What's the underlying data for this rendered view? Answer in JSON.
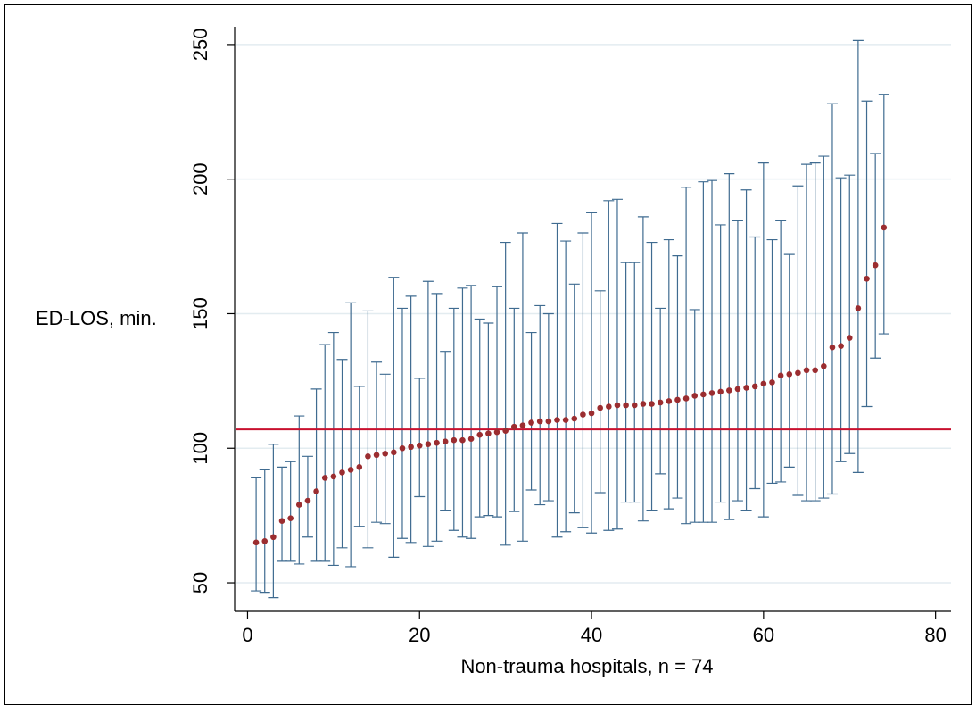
{
  "chart_data": {
    "type": "errorbar",
    "x_label": "Non-trauma hospitals, n = 74",
    "y_label": "ED-LOS, min.",
    "xlim": [
      -1.5,
      81.8
    ],
    "ylim": [
      39.4,
      256.6
    ],
    "xticks": [
      0,
      20,
      40,
      60,
      80
    ],
    "yticks": [
      50,
      100,
      150,
      200,
      250
    ],
    "grid": true,
    "color": "#9b2d30",
    "errorbar_color": "#3f6b90",
    "reference_line": {
      "value": 107,
      "color": "#c8102e"
    },
    "x": [
      1,
      2,
      3,
      4,
      5,
      6,
      7,
      8,
      9,
      10,
      11,
      12,
      13,
      14,
      15,
      16,
      17,
      18,
      19,
      20,
      21,
      22,
      23,
      24,
      25,
      26,
      27,
      28,
      29,
      30,
      31,
      32,
      33,
      34,
      35,
      36,
      37,
      38,
      39,
      40,
      41,
      42,
      43,
      44,
      45,
      46,
      47,
      48,
      49,
      50,
      51,
      52,
      53,
      54,
      55,
      56,
      57,
      58,
      59,
      60,
      61,
      62,
      63,
      64,
      65,
      66,
      67,
      68,
      69,
      70,
      71,
      72,
      73,
      74
    ],
    "values": [
      65,
      65.5,
      67,
      73,
      74,
      79,
      80.5,
      84,
      89,
      89.5,
      91,
      92,
      93,
      97,
      97.5,
      98,
      98.5,
      100,
      100.5,
      101,
      101.5,
      102,
      102.5,
      103,
      103,
      103.5,
      105,
      105.5,
      106,
      106.5,
      108,
      108.5,
      109.5,
      110,
      110,
      110.5,
      110.5,
      111,
      112.5,
      113,
      115,
      115.5,
      116,
      116,
      116,
      116.5,
      116.5,
      117,
      117.5,
      118,
      118.5,
      119.5,
      120,
      120.5,
      121,
      121.5,
      122,
      122.5,
      123,
      124,
      124.5,
      127,
      127.5,
      128,
      129,
      129,
      130.5,
      137.5,
      138,
      141,
      152,
      163,
      168,
      182
    ],
    "lower": [
      47,
      46.5,
      44.5,
      58,
      58,
      57,
      67,
      58,
      58,
      56.5,
      63,
      56,
      71,
      63,
      72.5,
      72,
      59.5,
      66.5,
      65,
      82,
      63.5,
      65.5,
      77,
      69.5,
      67,
      66.5,
      74.5,
      75,
      74.5,
      64,
      76.5,
      65.5,
      84.5,
      79,
      80.5,
      67,
      69,
      76,
      70.5,
      68.5,
      83.5,
      69.5,
      70,
      80,
      80,
      73,
      77,
      90.5,
      77.5,
      81.5,
      72,
      72.5,
      72.5,
      72.5,
      80,
      73.5,
      80.5,
      77,
      85,
      74.5,
      87,
      87.5,
      93,
      82.5,
      80.5,
      80.5,
      81.5,
      83,
      95,
      98,
      91,
      115.5,
      133.5,
      142.5
    ],
    "upper": [
      89,
      92,
      101.5,
      93,
      95,
      112,
      97,
      122,
      138.5,
      143,
      133,
      154,
      123,
      151,
      132,
      127.5,
      163.5,
      152,
      156.5,
      126,
      162,
      157.5,
      136,
      152,
      159.5,
      160.5,
      148,
      146.5,
      160,
      176.5,
      152,
      180,
      143,
      153,
      150,
      183.5,
      177,
      161,
      180,
      187.5,
      158.5,
      192,
      192.5,
      169,
      169,
      186,
      176.5,
      152,
      177.5,
      171.5,
      197,
      151.5,
      199,
      199.5,
      183,
      202,
      184.5,
      196,
      178.5,
      206,
      177.5,
      184.5,
      172,
      197.5,
      205.5,
      206,
      208.5,
      228,
      200.5,
      201.5,
      251.5,
      229,
      209.5,
      231.5
    ]
  }
}
